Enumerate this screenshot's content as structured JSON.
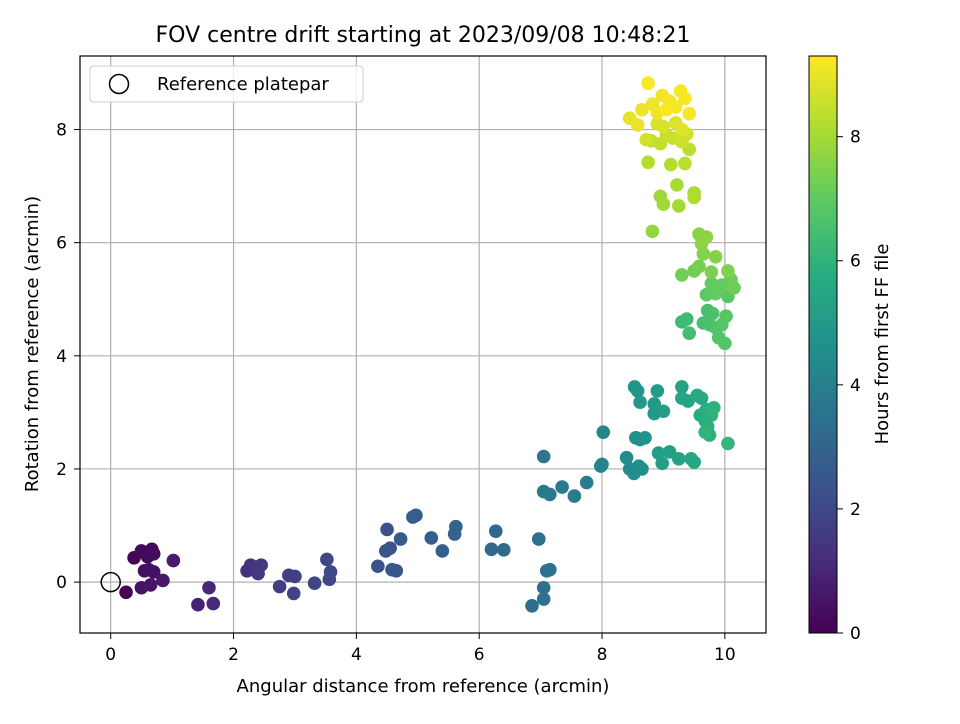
{
  "chart_data": {
    "type": "scatter",
    "title": "FOV centre drift starting at 2023/09/08 10:48:21",
    "xlabel": "Angular distance from reference (arcmin)",
    "ylabel": "Rotation from reference (arcmin)",
    "xlim": [
      -0.5,
      10.67
    ],
    "ylim": [
      -0.9,
      9.3
    ],
    "xticks": [
      "0",
      "2",
      "4",
      "6",
      "8",
      "10"
    ],
    "yticks": [
      "0",
      "2",
      "4",
      "6",
      "8"
    ],
    "xtick_values": [
      0,
      2,
      4,
      6,
      8,
      10
    ],
    "ytick_values": [
      0,
      2,
      4,
      6,
      8
    ],
    "grid": true,
    "legend_position": "top-left",
    "legend": {
      "label": "Reference platepar",
      "marker": "open-circle"
    },
    "reference_point": {
      "x": 0,
      "y": 0
    },
    "colorbar": {
      "label": "Hours from first FF file",
      "colormap": "viridis",
      "range": [
        0,
        9.3
      ],
      "ticks": [
        "0",
        "2",
        "4",
        "6",
        "8"
      ],
      "tick_values": [
        0,
        2,
        4,
        6,
        8
      ]
    },
    "points": [
      {
        "x": 0.25,
        "y": -0.18,
        "c": 0.05
      },
      {
        "x": 0.38,
        "y": 0.43,
        "c": 0.1
      },
      {
        "x": 0.5,
        "y": 0.55,
        "c": 0.15
      },
      {
        "x": 0.6,
        "y": 0.45,
        "c": 0.2
      },
      {
        "x": 0.67,
        "y": 0.58,
        "c": 0.25
      },
      {
        "x": 0.7,
        "y": 0.5,
        "c": 0.3
      },
      {
        "x": 0.55,
        "y": 0.2,
        "c": 0.35
      },
      {
        "x": 0.62,
        "y": 0.22,
        "c": 0.4
      },
      {
        "x": 0.7,
        "y": 0.18,
        "c": 0.45
      },
      {
        "x": 0.5,
        "y": -0.1,
        "c": 0.5
      },
      {
        "x": 0.65,
        "y": -0.05,
        "c": 0.55
      },
      {
        "x": 0.85,
        "y": 0.03,
        "c": 0.6
      },
      {
        "x": 1.02,
        "y": 0.38,
        "c": 0.7
      },
      {
        "x": 1.42,
        "y": -0.4,
        "c": 0.9
      },
      {
        "x": 1.6,
        "y": -0.1,
        "c": 1.0
      },
      {
        "x": 1.67,
        "y": -0.38,
        "c": 1.05
      },
      {
        "x": 2.22,
        "y": 0.2,
        "c": 1.3
      },
      {
        "x": 2.28,
        "y": 0.3,
        "c": 1.35
      },
      {
        "x": 2.32,
        "y": 0.22,
        "c": 1.4
      },
      {
        "x": 2.38,
        "y": 0.2,
        "c": 1.45
      },
      {
        "x": 2.45,
        "y": 0.3,
        "c": 1.5
      },
      {
        "x": 2.4,
        "y": 0.15,
        "c": 1.55
      },
      {
        "x": 2.75,
        "y": -0.08,
        "c": 1.7
      },
      {
        "x": 2.9,
        "y": 0.12,
        "c": 1.75
      },
      {
        "x": 3.0,
        "y": 0.1,
        "c": 1.8
      },
      {
        "x": 2.98,
        "y": -0.2,
        "c": 1.85
      },
      {
        "x": 3.32,
        "y": -0.02,
        "c": 1.95
      },
      {
        "x": 3.52,
        "y": 0.4,
        "c": 2.0
      },
      {
        "x": 3.56,
        "y": 0.05,
        "c": 2.05
      },
      {
        "x": 3.58,
        "y": 0.18,
        "c": 2.1
      },
      {
        "x": 4.35,
        "y": 0.28,
        "c": 2.3
      },
      {
        "x": 4.48,
        "y": 0.55,
        "c": 2.35
      },
      {
        "x": 4.5,
        "y": 0.93,
        "c": 2.4
      },
      {
        "x": 4.55,
        "y": 0.6,
        "c": 2.45
      },
      {
        "x": 4.58,
        "y": 0.22,
        "c": 2.5
      },
      {
        "x": 4.65,
        "y": 0.2,
        "c": 2.55
      },
      {
        "x": 4.72,
        "y": 0.76,
        "c": 2.6
      },
      {
        "x": 4.92,
        "y": 1.15,
        "c": 2.7
      },
      {
        "x": 4.97,
        "y": 1.18,
        "c": 2.75
      },
      {
        "x": 5.22,
        "y": 0.78,
        "c": 2.8
      },
      {
        "x": 5.4,
        "y": 0.55,
        "c": 2.85
      },
      {
        "x": 5.6,
        "y": 0.85,
        "c": 2.9
      },
      {
        "x": 5.62,
        "y": 0.98,
        "c": 2.95
      },
      {
        "x": 6.2,
        "y": 0.58,
        "c": 3.1
      },
      {
        "x": 6.27,
        "y": 0.9,
        "c": 3.15
      },
      {
        "x": 6.4,
        "y": 0.57,
        "c": 3.2
      },
      {
        "x": 6.86,
        "y": -0.42,
        "c": 3.3
      },
      {
        "x": 6.97,
        "y": 0.76,
        "c": 3.35
      },
      {
        "x": 7.05,
        "y": -0.1,
        "c": 3.4
      },
      {
        "x": 7.05,
        "y": -0.3,
        "c": 3.45
      },
      {
        "x": 7.1,
        "y": 0.2,
        "c": 3.5
      },
      {
        "x": 7.15,
        "y": 0.22,
        "c": 3.55
      },
      {
        "x": 7.05,
        "y": 2.22,
        "c": 3.6
      },
      {
        "x": 7.05,
        "y": 1.6,
        "c": 3.7
      },
      {
        "x": 7.15,
        "y": 1.55,
        "c": 3.75
      },
      {
        "x": 7.35,
        "y": 1.68,
        "c": 3.8
      },
      {
        "x": 7.55,
        "y": 1.52,
        "c": 3.85
      },
      {
        "x": 7.75,
        "y": 1.76,
        "c": 3.95
      },
      {
        "x": 7.98,
        "y": 2.05,
        "c": 4.05
      },
      {
        "x": 8.0,
        "y": 2.08,
        "c": 4.1
      },
      {
        "x": 8.02,
        "y": 2.65,
        "c": 4.15
      },
      {
        "x": 8.4,
        "y": 2.2,
        "c": 4.4
      },
      {
        "x": 8.45,
        "y": 2.0,
        "c": 4.45
      },
      {
        "x": 8.52,
        "y": 1.92,
        "c": 4.5
      },
      {
        "x": 8.6,
        "y": 2.05,
        "c": 4.55
      },
      {
        "x": 8.65,
        "y": 2.0,
        "c": 4.6
      },
      {
        "x": 8.55,
        "y": 2.55,
        "c": 4.65
      },
      {
        "x": 8.62,
        "y": 2.52,
        "c": 4.7
      },
      {
        "x": 8.7,
        "y": 2.55,
        "c": 4.75
      },
      {
        "x": 8.53,
        "y": 3.45,
        "c": 4.8
      },
      {
        "x": 8.58,
        "y": 3.38,
        "c": 4.85
      },
      {
        "x": 8.62,
        "y": 3.18,
        "c": 4.9
      },
      {
        "x": 8.85,
        "y": 3.15,
        "c": 4.95
      },
      {
        "x": 8.85,
        "y": 2.98,
        "c": 5.0
      },
      {
        "x": 8.9,
        "y": 3.38,
        "c": 5.05
      },
      {
        "x": 9.0,
        "y": 3.02,
        "c": 5.1
      },
      {
        "x": 8.92,
        "y": 2.28,
        "c": 5.15
      },
      {
        "x": 8.98,
        "y": 2.1,
        "c": 5.2
      },
      {
        "x": 9.1,
        "y": 2.3,
        "c": 5.25
      },
      {
        "x": 9.25,
        "y": 2.18,
        "c": 5.3
      },
      {
        "x": 9.3,
        "y": 3.45,
        "c": 5.35
      },
      {
        "x": 9.3,
        "y": 3.25,
        "c": 5.4
      },
      {
        "x": 9.4,
        "y": 3.2,
        "c": 5.45
      },
      {
        "x": 9.45,
        "y": 2.18,
        "c": 5.5
      },
      {
        "x": 9.5,
        "y": 2.12,
        "c": 5.55
      },
      {
        "x": 9.55,
        "y": 3.3,
        "c": 5.6
      },
      {
        "x": 9.62,
        "y": 3.25,
        "c": 5.65
      },
      {
        "x": 9.6,
        "y": 2.95,
        "c": 5.7
      },
      {
        "x": 9.68,
        "y": 2.85,
        "c": 5.75
      },
      {
        "x": 9.7,
        "y": 3.05,
        "c": 5.8
      },
      {
        "x": 9.72,
        "y": 2.75,
        "c": 5.85
      },
      {
        "x": 9.75,
        "y": 2.6,
        "c": 5.9
      },
      {
        "x": 9.78,
        "y": 2.95,
        "c": 5.95
      },
      {
        "x": 9.82,
        "y": 3.08,
        "c": 6.0
      },
      {
        "x": 9.68,
        "y": 2.65,
        "c": 6.05
      },
      {
        "x": 10.05,
        "y": 2.45,
        "c": 6.1
      },
      {
        "x": 9.3,
        "y": 4.6,
        "c": 6.3
      },
      {
        "x": 9.38,
        "y": 4.65,
        "c": 6.35
      },
      {
        "x": 9.42,
        "y": 4.4,
        "c": 6.4
      },
      {
        "x": 9.65,
        "y": 4.58,
        "c": 6.45
      },
      {
        "x": 9.72,
        "y": 4.8,
        "c": 6.5
      },
      {
        "x": 9.75,
        "y": 4.55,
        "c": 6.55
      },
      {
        "x": 9.8,
        "y": 4.75,
        "c": 6.6
      },
      {
        "x": 9.85,
        "y": 4.5,
        "c": 6.65
      },
      {
        "x": 9.9,
        "y": 4.32,
        "c": 6.7
      },
      {
        "x": 9.95,
        "y": 4.55,
        "c": 6.75
      },
      {
        "x": 10.0,
        "y": 4.22,
        "c": 6.8
      },
      {
        "x": 10.02,
        "y": 4.7,
        "c": 6.85
      },
      {
        "x": 10.05,
        "y": 5.05,
        "c": 6.9
      },
      {
        "x": 9.7,
        "y": 5.08,
        "c": 6.95
      },
      {
        "x": 9.78,
        "y": 5.28,
        "c": 7.0
      },
      {
        "x": 9.85,
        "y": 5.1,
        "c": 7.05
      },
      {
        "x": 9.95,
        "y": 5.25,
        "c": 7.1
      },
      {
        "x": 10.1,
        "y": 5.35,
        "c": 7.15
      },
      {
        "x": 10.15,
        "y": 5.2,
        "c": 7.2
      },
      {
        "x": 9.3,
        "y": 5.43,
        "c": 7.25
      },
      {
        "x": 9.5,
        "y": 5.5,
        "c": 7.3
      },
      {
        "x": 9.58,
        "y": 5.58,
        "c": 7.35
      },
      {
        "x": 9.78,
        "y": 5.48,
        "c": 7.4
      },
      {
        "x": 10.05,
        "y": 5.5,
        "c": 7.45
      },
      {
        "x": 9.65,
        "y": 5.8,
        "c": 7.5
      },
      {
        "x": 9.85,
        "y": 5.75,
        "c": 7.55
      },
      {
        "x": 9.58,
        "y": 6.15,
        "c": 7.6
      },
      {
        "x": 9.7,
        "y": 6.1,
        "c": 7.65
      },
      {
        "x": 9.62,
        "y": 5.98,
        "c": 7.7
      },
      {
        "x": 8.82,
        "y": 6.2,
        "c": 7.75
      },
      {
        "x": 8.95,
        "y": 6.82,
        "c": 7.9
      },
      {
        "x": 9.0,
        "y": 6.68,
        "c": 7.95
      },
      {
        "x": 9.25,
        "y": 6.65,
        "c": 8.0
      },
      {
        "x": 9.22,
        "y": 7.02,
        "c": 8.05
      },
      {
        "x": 9.5,
        "y": 6.88,
        "c": 8.1
      },
      {
        "x": 9.5,
        "y": 6.8,
        "c": 8.15
      },
      {
        "x": 8.75,
        "y": 7.42,
        "c": 8.2
      },
      {
        "x": 9.12,
        "y": 7.38,
        "c": 8.25
      },
      {
        "x": 9.35,
        "y": 7.4,
        "c": 8.3
      },
      {
        "x": 9.42,
        "y": 7.65,
        "c": 8.35
      },
      {
        "x": 8.8,
        "y": 7.8,
        "c": 8.4
      },
      {
        "x": 8.95,
        "y": 7.75,
        "c": 8.45
      },
      {
        "x": 9.05,
        "y": 7.9,
        "c": 8.5
      },
      {
        "x": 9.15,
        "y": 7.85,
        "c": 8.55
      },
      {
        "x": 9.3,
        "y": 7.78,
        "c": 8.6
      },
      {
        "x": 9.38,
        "y": 7.92,
        "c": 8.65
      },
      {
        "x": 8.72,
        "y": 7.82,
        "c": 8.7
      },
      {
        "x": 8.9,
        "y": 8.1,
        "c": 8.75
      },
      {
        "x": 9.0,
        "y": 8.05,
        "c": 8.8
      },
      {
        "x": 9.2,
        "y": 8.12,
        "c": 8.85
      },
      {
        "x": 9.3,
        "y": 8.0,
        "c": 8.9
      },
      {
        "x": 8.45,
        "y": 8.2,
        "c": 8.95
      },
      {
        "x": 8.58,
        "y": 8.08,
        "c": 9.0
      },
      {
        "x": 8.65,
        "y": 8.35,
        "c": 9.05
      },
      {
        "x": 8.82,
        "y": 8.45,
        "c": 9.1
      },
      {
        "x": 8.9,
        "y": 8.3,
        "c": 9.12
      },
      {
        "x": 8.98,
        "y": 8.6,
        "c": 9.14
      },
      {
        "x": 9.1,
        "y": 8.5,
        "c": 9.16
      },
      {
        "x": 9.2,
        "y": 8.4,
        "c": 9.18
      },
      {
        "x": 9.28,
        "y": 8.68,
        "c": 9.2
      },
      {
        "x": 9.42,
        "y": 8.28,
        "c": 9.22
      },
      {
        "x": 9.35,
        "y": 8.55,
        "c": 9.24
      },
      {
        "x": 8.75,
        "y": 8.82,
        "c": 9.26
      },
      {
        "x": 9.05,
        "y": 8.35,
        "c": 9.28
      }
    ]
  }
}
